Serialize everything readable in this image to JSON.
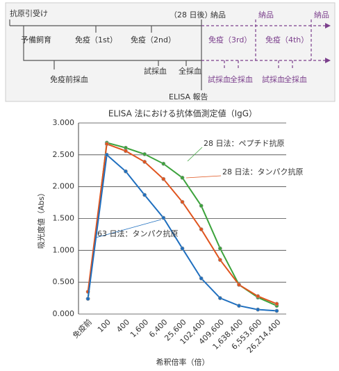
{
  "timeline": {
    "start": "抗原引受け",
    "prebreed": "予備飼育",
    "immune1": "免疫（1st）",
    "immune2": "免疫（2nd）",
    "after28": "（28 日後）",
    "delivery1": "納品",
    "delivery2": "納品",
    "delivery3": "納品",
    "immune3": "免疫（3rd）",
    "immune4": "免疫（4th）",
    "preBleed": "免疫前採血",
    "testBleed1": "試採血",
    "fullBleed1": "全採血",
    "elisa": "ELISA 報告",
    "testBleed2": "試採血",
    "fullBleed2": "全採血",
    "testBleed3": "試採血",
    "fullBleed3": "全採血"
  },
  "chart_data": {
    "type": "line",
    "title": "ELISA 法における抗体価測定値（IgG）",
    "x_label": "希釈倍率（倍）",
    "y_label": "吸光度値（Abs）",
    "categories": [
      "免疫前",
      "100",
      "400",
      "1,600",
      "6,400",
      "25,600",
      "102,400",
      "409,600",
      "1,638,400",
      "6,553,600",
      "26,214,400"
    ],
    "series": [
      {
        "name": "28 日法：ペプチド抗原",
        "color": "#3ca33c",
        "values": [
          0.24,
          2.69,
          2.61,
          2.51,
          2.36,
          2.14,
          1.7,
          1.03,
          0.46,
          0.26,
          0.13
        ]
      },
      {
        "name": "28 日法：タンパク抗原",
        "color": "#e0541e",
        "values": [
          0.35,
          2.67,
          2.56,
          2.39,
          2.12,
          1.76,
          1.33,
          0.85,
          0.46,
          0.28,
          0.16
        ]
      },
      {
        "name": "63 日法：タンパク抗原",
        "color": "#1f6fbf",
        "values": [
          0.24,
          2.5,
          2.24,
          1.87,
          1.51,
          1.03,
          0.56,
          0.25,
          0.13,
          0.07,
          0.05
        ]
      }
    ],
    "ylim": [
      0,
      3
    ],
    "yticks": [
      {
        "value": 0,
        "label": "0.000"
      },
      {
        "value": 0.5,
        "label": "0.500"
      },
      {
        "value": 1,
        "label": "1.000"
      },
      {
        "value": 1.5,
        "label": "1.500"
      },
      {
        "value": 2,
        "label": "2.000"
      },
      {
        "value": 2.5,
        "label": "2.500"
      },
      {
        "value": 3,
        "label": "3.000"
      }
    ],
    "grid": true
  }
}
